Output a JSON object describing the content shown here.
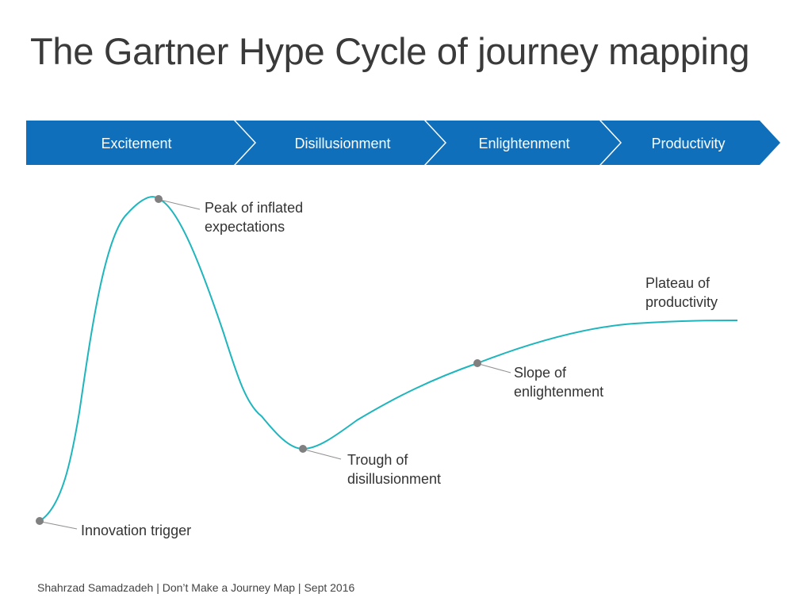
{
  "title": "The Gartner Hype Cycle of journey mapping",
  "phases": [
    "Excitement",
    "Disillusionment",
    "Enlightenment",
    "Productivity"
  ],
  "stages": [
    {
      "lines": [
        "Innovation trigger"
      ]
    },
    {
      "lines": [
        "Peak of inflated",
        "expectations"
      ]
    },
    {
      "lines": [
        "Trough of",
        "disillusionment"
      ]
    },
    {
      "lines": [
        "Slope of",
        "enlightenment"
      ]
    },
    {
      "lines": [
        "Plateau of",
        "productivity"
      ]
    }
  ],
  "footer": "Shahrzad Samadzadeh | Don’t Make a Journey Map | Sept 2016",
  "colors": {
    "phase_fill": "#0f6fba",
    "phase_text": "#ffffff",
    "curve": "#1fb5bd",
    "marker": "#808080",
    "leader": "#909090",
    "title_text": "#3a3a3a"
  }
}
